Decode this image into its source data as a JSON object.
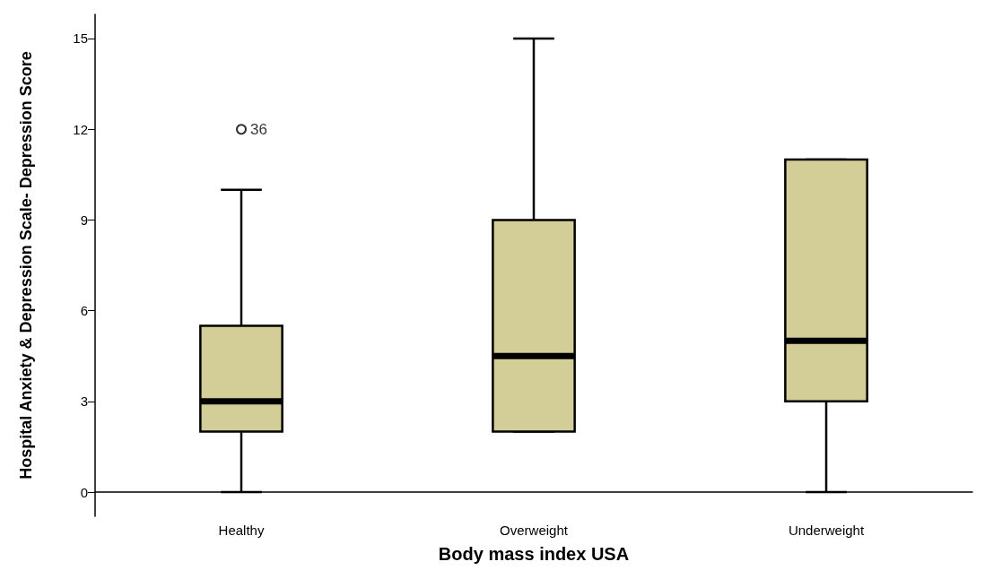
{
  "chart_data": {
    "type": "box",
    "xlabel": "Body mass index USA",
    "ylabel": "Hospital Anxiety & Depression Scale- Depression Score",
    "categories": [
      "Healthy",
      "Overweight",
      "Underweight"
    ],
    "color": "#d3cd98",
    "boxes": [
      {
        "low": 0,
        "q1": 2,
        "median": 3,
        "q3": 5.5,
        "high": 10,
        "outliers": [
          12
        ]
      },
      {
        "low": 2,
        "q1": 2,
        "median": 4.5,
        "q3": 9,
        "high": 15
      },
      {
        "low": 0,
        "q1": 3,
        "median": 5,
        "q3": 11,
        "high": 11
      }
    ],
    "annotations": [
      "36"
    ],
    "ylim": [
      -0.8,
      15.8
    ],
    "yticks": [
      0,
      3,
      6,
      9,
      12,
      15
    ],
    "grid": false
  }
}
